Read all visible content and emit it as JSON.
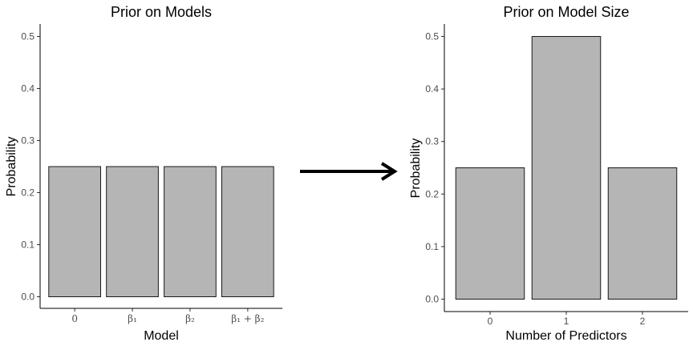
{
  "chart_data": [
    {
      "type": "bar",
      "title": "Prior on Models",
      "xlabel": "Model",
      "ylabel": "Probability",
      "categories": [
        "0",
        "β₁",
        "β₂",
        "β₁ + β₂"
      ],
      "values": [
        0.25,
        0.25,
        0.25,
        0.25
      ],
      "ylim": [
        0,
        0.5
      ],
      "yticks": [
        "0.0",
        "0.1",
        "0.2",
        "0.3",
        "0.4",
        "0.5"
      ],
      "grid": false,
      "bar_fill": "#b5b5b5"
    },
    {
      "type": "bar",
      "title": "Prior on Model Size",
      "xlabel": "Number of Predictors",
      "ylabel": "Probability",
      "categories": [
        "0",
        "1",
        "2"
      ],
      "values": [
        0.25,
        0.5,
        0.25
      ],
      "ylim": [
        0,
        0.5
      ],
      "yticks": [
        "0.0",
        "0.1",
        "0.2",
        "0.3",
        "0.4",
        "0.5"
      ],
      "grid": false,
      "bar_fill": "#b5b5b5"
    }
  ],
  "connector": {
    "icon": "right-arrow-icon"
  }
}
